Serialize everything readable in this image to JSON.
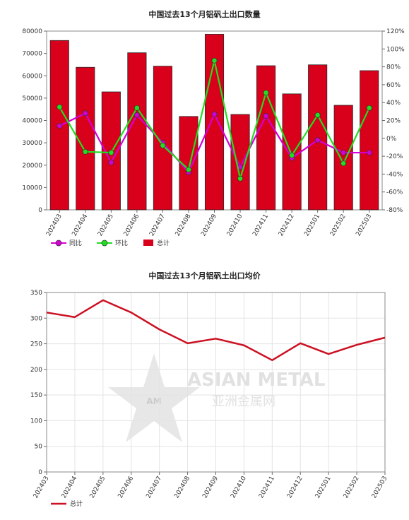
{
  "chart_data": [
    {
      "type": "bar",
      "title": "中国过去13个月铝矾土出口数量",
      "categories": [
        "202403",
        "202404",
        "202405",
        "202406",
        "202407",
        "202408",
        "202409",
        "202410",
        "202411",
        "202412",
        "202501",
        "202502",
        "202503"
      ],
      "ylim": [
        0,
        80000
      ],
      "y2lim": [
        -80,
        120
      ],
      "y_ticks": [
        "0",
        "10000",
        "20000",
        "30000",
        "40000",
        "50000",
        "60000",
        "70000",
        "80000"
      ],
      "y2_ticks": [
        "-80%",
        "-60%",
        "-40%",
        "-20%",
        "0%",
        "20%",
        "40%",
        "60%",
        "80%",
        "100%",
        "120%"
      ],
      "series": [
        {
          "name": "总计",
          "kind": "bar",
          "axis": "left",
          "color": "#d9001b",
          "values": [
            75800,
            63800,
            52800,
            70300,
            64300,
            41800,
            78600,
            42700,
            64500,
            51900,
            64900,
            46800,
            62300
          ]
        },
        {
          "name": "同比",
          "kind": "line",
          "axis": "right",
          "color": "#d400d4",
          "values": [
            14,
            28,
            -27,
            26,
            -5,
            -38,
            27,
            -32,
            25,
            -22,
            -2,
            -16,
            -16
          ]
        },
        {
          "name": "环比",
          "kind": "line",
          "axis": "right",
          "color": "#22dd22",
          "values": [
            35,
            -15,
            -16,
            34,
            -8,
            -35,
            87,
            -45,
            51,
            -19,
            26,
            -28,
            34
          ]
        }
      ],
      "legend": [
        "同比",
        "环比",
        "总计"
      ],
      "legend_position": "bottom-left",
      "grid": false
    },
    {
      "type": "line",
      "title": "中国过去13个月铝矾土出口均价",
      "categories": [
        "202403",
        "202404",
        "202405",
        "202406",
        "202407",
        "202408",
        "202409",
        "202410",
        "202411",
        "202412",
        "202501",
        "202502",
        "202503"
      ],
      "ylim": [
        0,
        350
      ],
      "y_ticks": [
        "0",
        "50",
        "100",
        "150",
        "200",
        "250",
        "300",
        "350"
      ],
      "series": [
        {
          "name": "总计",
          "color": "#cc1122",
          "values": [
            311,
            302,
            335,
            311,
            278,
            251,
            260,
            247,
            218,
            251,
            230,
            248,
            262
          ]
        }
      ],
      "legend": [
        "总计"
      ],
      "legend_position": "bottom-left",
      "grid": true
    }
  ],
  "watermark": {
    "brand": "ASIAN METAL",
    "brand_cn": "亚洲金属网",
    "mark": "AM"
  }
}
